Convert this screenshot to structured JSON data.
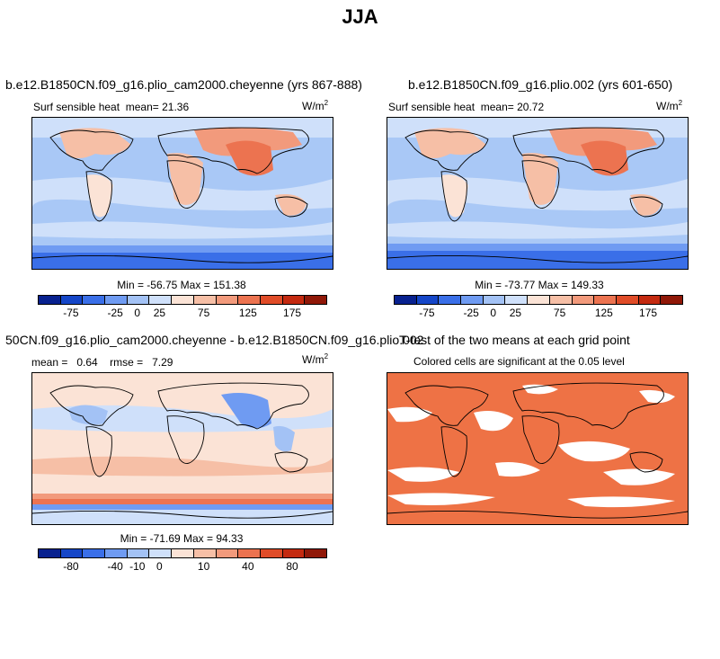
{
  "title": "JJA",
  "panels": [
    {
      "title": "b.e12.B1850CN.f09_g16.plio_cam2000.cheyenne (yrs 867-888)",
      "variable": "Surf sensible heat",
      "stat_label": "mean=",
      "stat_value": "21.36",
      "units": "W/m",
      "units_exp": "2",
      "min_max": "Min = -56.75 Max = 151.38",
      "colorbar_ticks": [
        "-75",
        "-25",
        "0",
        "25",
        "75",
        "125",
        "175"
      ]
    },
    {
      "title": "b.e12.B1850CN.f09_g16.plio.002 (yrs 601-650)",
      "variable": "Surf sensible heat",
      "stat_label": "mean=",
      "stat_value": "20.72",
      "units": "W/m",
      "units_exp": "2",
      "min_max": "Min = -73.77 Max = 149.33",
      "colorbar_ticks": [
        "-75",
        "-25",
        "0",
        "25",
        "75",
        "125",
        "175"
      ]
    },
    {
      "title": "50CN.f09_g16.plio_cam2000.cheyenne - b.e12.B1850CN.f09_g16.plio.002",
      "mean_label": "mean =",
      "mean_value": "0.64",
      "rmse_label": "rmse =",
      "rmse_value": "7.29",
      "units": "W/m",
      "units_exp": "2",
      "min_max": "Min = -71.69 Max = 94.33",
      "colorbar_ticks": [
        "-80",
        "-40",
        "-10",
        "0",
        "10",
        "40",
        "80"
      ]
    },
    {
      "title": "T-test of the two means at each grid point",
      "subtitle": "Colored cells are significant at the 0.05 level"
    }
  ],
  "colors": {
    "abs_scale": [
      "#08218f",
      "#1546c8",
      "#3a6fe8",
      "#6f9bf2",
      "#a3c2f5",
      "#cfe0fa",
      "#fbe3d6",
      "#f6bfa6",
      "#f29a7c",
      "#ec7350",
      "#e04c28",
      "#c42a10",
      "#901808"
    ],
    "diff_scale": [
      "#08218f",
      "#1546c8",
      "#3a6fe8",
      "#6f9bf2",
      "#a3c2f5",
      "#cfe0fa",
      "#fbe3d6",
      "#f6bfa6",
      "#f29a7c",
      "#ec7350",
      "#e04c28",
      "#c42a10",
      "#901808"
    ],
    "ttest": "#ee7245"
  }
}
